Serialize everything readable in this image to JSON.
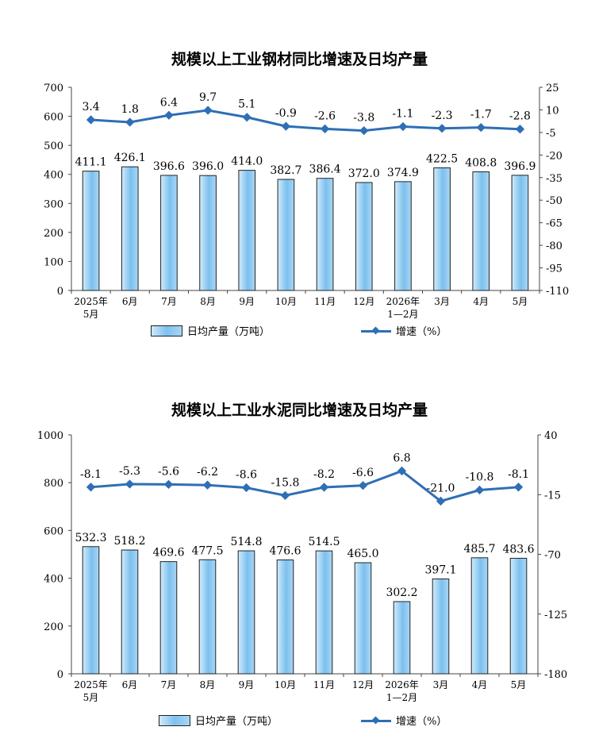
{
  "chart_data": [
    {
      "type": "bar+line",
      "title": "规模以上工业钢材同比增速及日均产量",
      "categories": [
        "2025年\n5月",
        "6月",
        "7月",
        "8月",
        "9月",
        "10月",
        "11月",
        "12月",
        "2026年\n1—2月",
        "3月",
        "4月",
        "5月"
      ],
      "series": [
        {
          "name": "日均产量（万吨）",
          "type": "bar",
          "axis": "left",
          "values": [
            411.1,
            426.1,
            396.6,
            396.0,
            414.0,
            382.7,
            386.4,
            372.0,
            374.9,
            422.5,
            408.8,
            396.9
          ]
        },
        {
          "name": "增速（%）",
          "type": "line",
          "axis": "right",
          "values": [
            3.4,
            1.8,
            6.4,
            9.7,
            5.1,
            -0.9,
            -2.6,
            -3.8,
            -1.1,
            -2.3,
            -1.7,
            -2.8
          ]
        }
      ],
      "ylim_left": [
        0,
        700
      ],
      "yticks_left": [
        0,
        100,
        200,
        300,
        400,
        500,
        600,
        700
      ],
      "ylim_right": [
        -110,
        25
      ],
      "yticks_right": [
        -110,
        -95,
        -80,
        -65,
        -50,
        -35,
        -20,
        -5,
        10,
        25
      ],
      "grid": false,
      "legend_position": "bottom",
      "colors": {
        "bar": "#8ecbf2",
        "line": "#2e6fb5"
      }
    },
    {
      "type": "bar+line",
      "title": "规模以上工业水泥同比增速及日均产量",
      "categories": [
        "2025年\n5月",
        "6月",
        "7月",
        "8月",
        "9月",
        "10月",
        "11月",
        "12月",
        "2026年\n1—2月",
        "3月",
        "4月",
        "5月"
      ],
      "series": [
        {
          "name": "日均产量（万吨）",
          "type": "bar",
          "axis": "left",
          "values": [
            532.3,
            518.2,
            469.6,
            477.5,
            514.8,
            476.6,
            514.5,
            465.0,
            302.2,
            397.1,
            485.7,
            483.6
          ]
        },
        {
          "name": "增速（%）",
          "type": "line",
          "axis": "right",
          "values": [
            -8.1,
            -5.3,
            -5.6,
            -6.2,
            -8.6,
            -15.8,
            -8.2,
            -6.6,
            6.8,
            -21.0,
            -10.8,
            -8.1
          ]
        }
      ],
      "ylim_left": [
        0,
        1000
      ],
      "yticks_left": [
        0,
        200,
        400,
        600,
        800,
        1000
      ],
      "ylim_right": [
        -180,
        40
      ],
      "yticks_right": [
        -180,
        -125,
        -70,
        -15,
        40
      ],
      "grid": false,
      "legend_position": "bottom",
      "colors": {
        "bar": "#8ecbf2",
        "line": "#2e6fb5"
      }
    }
  ]
}
